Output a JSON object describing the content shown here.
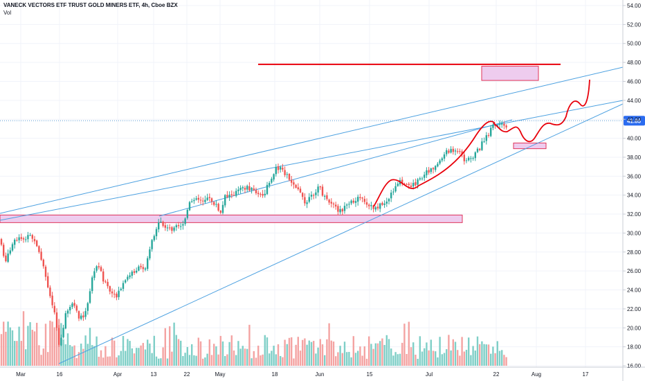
{
  "header": {
    "title": "VANECK VECTORS ETF TRUST GOLD MINERS ETF, 4h, Cboe BZX",
    "volume_label": "Vol"
  },
  "price_badge": {
    "value": "41.85",
    "color": "#2b6cf0"
  },
  "colors": {
    "up": "#26a69a",
    "down": "#ef5350",
    "up_volume": "#7fcfc7",
    "down_volume": "#f4a3a2",
    "trendline": "#4ba0e0",
    "drawing": "#e8000b",
    "zone_fill": "#eeccee",
    "zone_border": "#e0355a"
  },
  "chart_data": {
    "type": "candlestick",
    "ylim": [
      16,
      54
    ],
    "y_ticks": [
      "16.00",
      "18.00",
      "20.00",
      "22.00",
      "24.00",
      "26.00",
      "28.00",
      "30.00",
      "32.00",
      "34.00",
      "36.00",
      "38.00",
      "40.00",
      "42.00",
      "44.00",
      "46.00",
      "48.00",
      "50.00",
      "52.00",
      "54.00"
    ],
    "x_ticks": [
      "Mar",
      "16",
      "Apr",
      "13",
      "22",
      "May",
      "18",
      "Jun",
      "15",
      "Jul",
      "22",
      "Aug",
      "17"
    ],
    "current_price": 41.85,
    "key_levels": [
      {
        "name": "resistance",
        "value": 47.8
      },
      {
        "name": "support",
        "value": 31.5
      }
    ],
    "zones": [
      {
        "from": 46.1,
        "to": 47.6
      },
      {
        "from": 31.1,
        "to": 31.9
      },
      {
        "from": 38.9,
        "to": 39.5
      }
    ],
    "path_checkpoints": [
      {
        "x": "May 13",
        "low": 31.4
      },
      {
        "x": "Jun 15",
        "low": 32.7
      },
      {
        "x": "Jul 22",
        "high": 42.0
      },
      {
        "x": "Jul 28",
        "low": 39.3
      },
      {
        "x": "Aug 12",
        "high": 46.2
      }
    ]
  }
}
